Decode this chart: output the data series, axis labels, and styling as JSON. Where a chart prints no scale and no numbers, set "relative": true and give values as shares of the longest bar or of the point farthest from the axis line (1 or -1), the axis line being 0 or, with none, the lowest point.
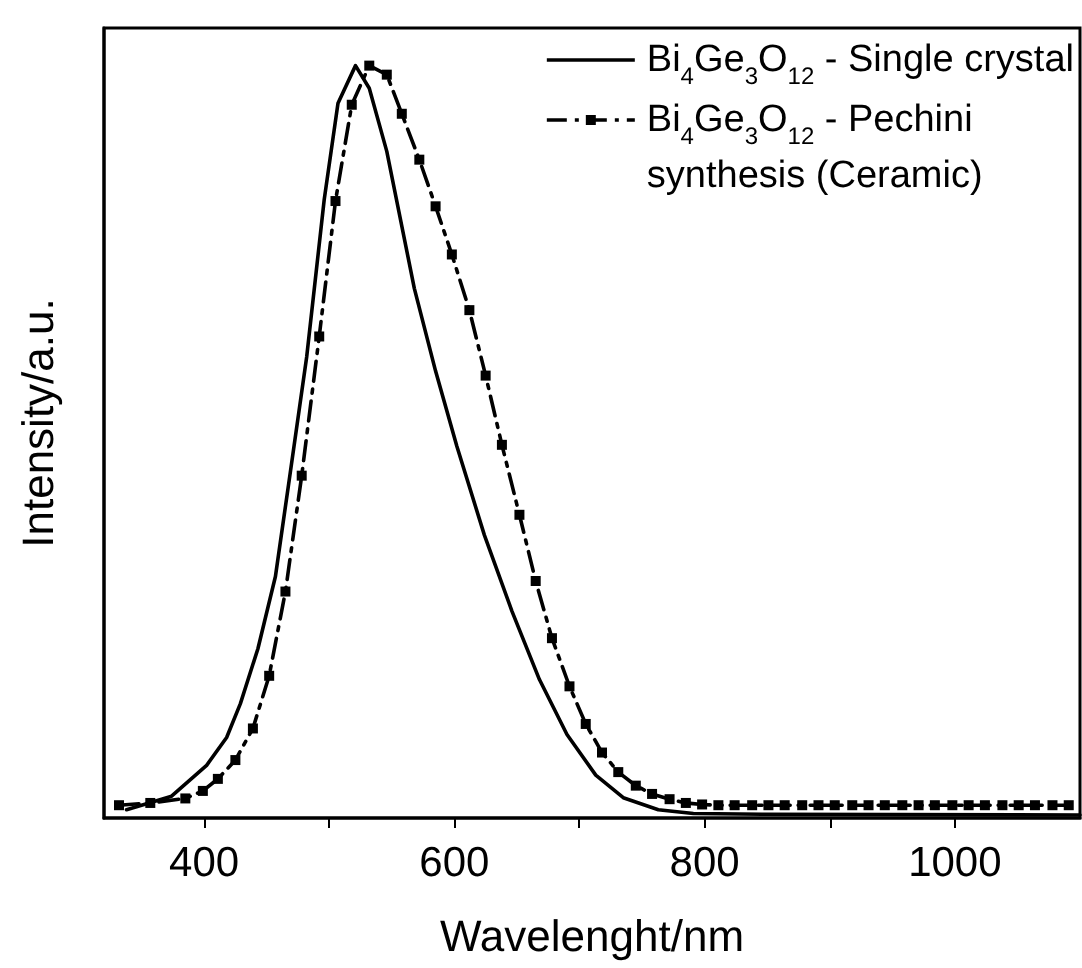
{
  "chart_data": {
    "type": "line",
    "relative": true,
    "xlabel": "Wavelenght/nm",
    "ylabel": "Intensity/a.u.",
    "xlim": [
      320,
      1100
    ],
    "xticks": [
      400,
      {
        "value": 500,
        "label": null
      },
      600,
      {
        "value": 700,
        "label": null
      },
      800,
      {
        "value": 900,
        "label": null
      },
      1000
    ],
    "legend": "top right",
    "grid": false,
    "series": [
      {
        "name": "Bi$_{4}$Ge$_{3}$O$_{12}$ - Single crystal",
        "color": "#000000",
        "marker": "none",
        "line_style": "solid",
        "x": [
          338,
          374,
          402,
          418,
          429,
          443,
          457,
          468,
          482,
          496,
          507,
          521,
          532,
          546,
          568,
          585,
          602,
          624,
          646,
          668,
          690,
          713,
          735,
          763,
          791,
          846,
          1100
        ],
        "values": [
          0.011,
          0.029,
          0.07,
          0.107,
          0.152,
          0.225,
          0.321,
          0.449,
          0.613,
          0.822,
          0.95,
          1.0,
          0.97,
          0.886,
          0.704,
          0.594,
          0.494,
          0.376,
          0.275,
          0.184,
          0.111,
          0.057,
          0.027,
          0.011,
          0.006,
          0.005,
          0.004
        ]
      },
      {
        "name": "Bi$_{4}$Ge$_{3}$O$_{12}$ - Pechini synthesis (Ceramic)",
        "color": "#000000",
        "marker": "square",
        "line_style": "dashed",
        "x": [
          332,
          357,
          385,
          399,
          411,
          425,
          439,
          452,
          465,
          478,
          492,
          505,
          518,
          532,
          546,
          558,
          572,
          585,
          598,
          612,
          625,
          638,
          652,
          665,
          678,
          692,
          705,
          718,
          731,
          745,
          758,
          772,
          785,
          798,
          811,
          824,
          838,
          851,
          864,
          878,
          891,
          904,
          918,
          931,
          944,
          958,
          971,
          984,
          998,
          1011,
          1024,
          1038,
          1051,
          1064,
          1078,
          1091
        ],
        "values": [
          0.017,
          0.02,
          0.026,
          0.036,
          0.052,
          0.077,
          0.119,
          0.189,
          0.301,
          0.455,
          0.64,
          0.82,
          0.948,
          1.0,
          0.988,
          0.936,
          0.875,
          0.813,
          0.749,
          0.675,
          0.588,
          0.496,
          0.403,
          0.315,
          0.239,
          0.175,
          0.125,
          0.087,
          0.061,
          0.043,
          0.032,
          0.025,
          0.02,
          0.018,
          0.017,
          0.017,
          0.017,
          0.017,
          0.017,
          0.017,
          0.017,
          0.017,
          0.017,
          0.017,
          0.017,
          0.017,
          0.017,
          0.017,
          0.017,
          0.017,
          0.017,
          0.017,
          0.017,
          0.017,
          0.017,
          0.017
        ]
      }
    ]
  }
}
